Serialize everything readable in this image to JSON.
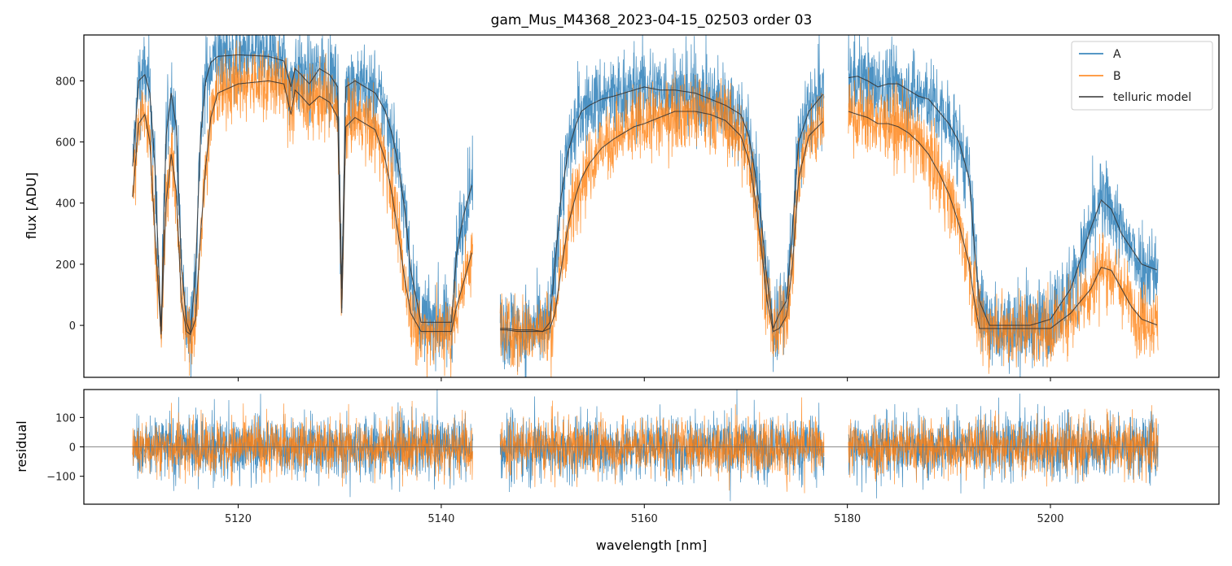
{
  "chart_data": {
    "type": "line",
    "title": "gam_Mus_M4368_2023-04-15_02503  order 03",
    "xlabel": "wavelength [nm]",
    "xlim": [
      5104.8,
      5216.6
    ],
    "x_ticks": [
      5120,
      5140,
      5160,
      5180,
      5200
    ],
    "x_tick_labels": [
      "5120",
      "5140",
      "5160",
      "5180",
      "5200"
    ],
    "segments": [
      [
        5109.6,
        5143.1
      ],
      [
        5145.8,
        5177.7
      ],
      [
        5180.1,
        5210.6
      ]
    ],
    "legend": {
      "placement": "top-right",
      "entries": [
        "A",
        "B",
        "telluric model"
      ]
    },
    "colors": {
      "A": "#1f77b4",
      "B": "#ff7f0e",
      "model": "#333333",
      "zero_line": "#666666"
    },
    "top_panel": {
      "ylabel": "flux [ADU]",
      "ylim": [
        -170,
        950
      ],
      "y_ticks": [
        0,
        200,
        400,
        600,
        800
      ],
      "y_tick_labels": [
        "0",
        "200",
        "400",
        "600",
        "800"
      ],
      "series": [
        {
          "name": "A",
          "model_x": [
            5109.6,
            5110.2,
            5110.8,
            5111.3,
            5111.8,
            5112.4,
            5112.9,
            5113.4,
            5113.9,
            5114.4,
            5114.9,
            5115.3,
            5115.8,
            5116.3,
            5116.8,
            5117.3,
            5118.0,
            5120.0,
            5123.0,
            5124.5,
            5125.2,
            5125.6,
            5126.2,
            5127.0,
            5128.0,
            5129.0,
            5129.8,
            5130.2,
            5130.6,
            5131.5,
            5133.5,
            5134.5,
            5135.2,
            5135.8,
            5136.4,
            5137.0,
            5138.0,
            5139.2,
            5140.3,
            5141.0,
            5141.5,
            5142.2,
            5143.1,
            5145.8,
            5146.5,
            5147.5,
            5149.0,
            5150.0,
            5150.7,
            5151.2,
            5151.8,
            5152.5,
            5153.3,
            5153.8,
            5154.6,
            5155.8,
            5157.0,
            5158.0,
            5159.0,
            5160.0,
            5161.5,
            5163.0,
            5165.0,
            5166.5,
            5168.0,
            5169.5,
            5170.3,
            5170.9,
            5171.5,
            5172.1,
            5172.7,
            5173.3,
            5174.0,
            5174.6,
            5175.2,
            5176.2,
            5177.7,
            5180.1,
            5181.0,
            5182.0,
            5183.0,
            5184.0,
            5185.0,
            5186.0,
            5187.0,
            5188.0,
            5189.0,
            5190.0,
            5191.0,
            5192.0,
            5192.5,
            5193.0,
            5194.0,
            5195.0,
            5196.0,
            5197.0,
            5198.0,
            5200.0,
            5202.0,
            5204.0,
            5205.0,
            5206.0,
            5207.0,
            5208.0,
            5209.0,
            5210.6
          ],
          "model_y": [
            520,
            800,
            820,
            760,
            520,
            -20,
            620,
            760,
            650,
            200,
            10,
            -25,
            180,
            620,
            800,
            860,
            880,
            885,
            880,
            865,
            780,
            840,
            820,
            790,
            840,
            820,
            780,
            120,
            780,
            800,
            760,
            700,
            620,
            520,
            380,
            180,
            10,
            10,
            10,
            10,
            230,
            360,
            470,
            -10,
            -10,
            -15,
            -15,
            -20,
            10,
            200,
            420,
            570,
            660,
            700,
            720,
            740,
            750,
            760,
            770,
            780,
            770,
            770,
            760,
            740,
            720,
            690,
            620,
            500,
            350,
            150,
            -10,
            40,
            80,
            320,
            600,
            700,
            760,
            810,
            815,
            800,
            780,
            790,
            790,
            770,
            750,
            740,
            700,
            660,
            600,
            480,
            260,
            80,
            0,
            0,
            0,
            0,
            0,
            20,
            120,
            320,
            410,
            380,
            300,
            250,
            200,
            180
          ],
          "scatter": 85
        },
        {
          "name": "B",
          "model_x": [
            5109.6,
            5110.2,
            5110.8,
            5111.3,
            5111.8,
            5112.4,
            5112.9,
            5113.4,
            5113.9,
            5114.4,
            5114.9,
            5115.3,
            5115.8,
            5116.3,
            5116.8,
            5117.3,
            5118.0,
            5120.0,
            5123.0,
            5124.5,
            5125.2,
            5125.6,
            5126.2,
            5127.0,
            5128.0,
            5129.0,
            5129.8,
            5130.2,
            5130.6,
            5131.5,
            5133.5,
            5134.5,
            5135.2,
            5135.8,
            5136.4,
            5137.0,
            5138.0,
            5139.2,
            5140.3,
            5141.0,
            5141.5,
            5142.2,
            5143.1,
            5145.8,
            5146.5,
            5147.5,
            5149.0,
            5150.0,
            5150.7,
            5151.2,
            5151.8,
            5152.5,
            5153.3,
            5153.8,
            5154.6,
            5155.8,
            5157.0,
            5158.0,
            5159.0,
            5160.0,
            5161.5,
            5163.0,
            5165.0,
            5166.5,
            5168.0,
            5169.5,
            5170.3,
            5170.9,
            5171.5,
            5172.1,
            5172.7,
            5173.3,
            5174.0,
            5174.6,
            5175.2,
            5176.2,
            5177.7,
            5180.1,
            5181.0,
            5182.0,
            5183.0,
            5184.0,
            5185.0,
            5186.0,
            5187.0,
            5188.0,
            5189.0,
            5190.0,
            5191.0,
            5192.0,
            5192.5,
            5193.0,
            5194.0,
            5195.0,
            5196.0,
            5197.0,
            5198.0,
            5200.0,
            5202.0,
            5204.0,
            5205.0,
            5206.0,
            5207.0,
            5208.0,
            5209.0,
            5210.6
          ],
          "model_y": [
            420,
            660,
            690,
            600,
            300,
            -30,
            400,
            560,
            440,
            80,
            -20,
            -30,
            20,
            300,
            520,
            680,
            760,
            790,
            800,
            790,
            690,
            770,
            750,
            720,
            750,
            730,
            680,
            40,
            650,
            680,
            640,
            540,
            420,
            290,
            150,
            40,
            -20,
            -20,
            -20,
            -20,
            60,
            140,
            250,
            -15,
            -15,
            -20,
            -20,
            -20,
            -10,
            40,
            180,
            330,
            430,
            480,
            530,
            580,
            610,
            630,
            650,
            660,
            680,
            700,
            700,
            690,
            670,
            620,
            540,
            420,
            260,
            80,
            -20,
            -10,
            30,
            200,
            480,
            620,
            670,
            700,
            690,
            680,
            660,
            660,
            650,
            630,
            600,
            560,
            500,
            430,
            330,
            200,
            80,
            -10,
            -10,
            -10,
            -10,
            -10,
            -10,
            -10,
            40,
            120,
            190,
            180,
            120,
            60,
            20,
            0
          ],
          "scatter": 75
        },
        {
          "name": "telluric model",
          "of": [
            "A",
            "B"
          ]
        }
      ]
    },
    "bottom_panel": {
      "ylabel": "residual",
      "ylim": [
        -195,
        195
      ],
      "y_ticks": [
        -100,
        0,
        100
      ],
      "y_tick_labels": [
        "−100",
        "0",
        "100"
      ],
      "zero_line": 0,
      "series": [
        {
          "name": "A",
          "scatter": 72
        },
        {
          "name": "B",
          "scatter": 65
        }
      ]
    }
  }
}
